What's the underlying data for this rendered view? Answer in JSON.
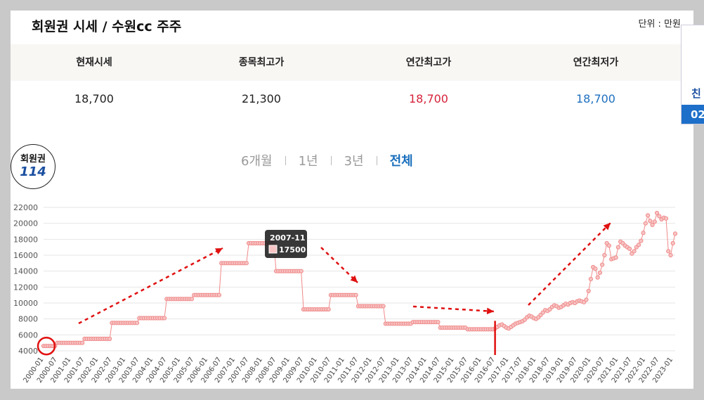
{
  "header": {
    "title": "회원권 시세 / 수원cc 주주",
    "unit": "단위 : 만원"
  },
  "stats": {
    "labels": [
      "현재시세",
      "종목최고가",
      "연간최고가",
      "연간최저가"
    ],
    "values": [
      "18,700",
      "21,300",
      "18,700",
      "18,700"
    ]
  },
  "badge": {
    "line1": "회원권",
    "line2": "114"
  },
  "periods": [
    "6개월",
    "1년",
    "3년",
    "전체"
  ],
  "active_period": "전체",
  "side": {
    "text1": "친",
    "text2": "02"
  },
  "colors": {
    "series": "#f08a8a",
    "annotation": "#e01010",
    "active": "#1a6fbd"
  },
  "tooltip": {
    "date": "2007-11",
    "value": "17500"
  },
  "chart_data": {
    "type": "line",
    "title": "",
    "xlabel": "",
    "ylabel": "",
    "ylim": [
      4000,
      22000
    ],
    "y_ticks": [
      4000,
      6000,
      8000,
      10000,
      12000,
      14000,
      16000,
      18000,
      20000,
      22000
    ],
    "x_ticks": [
      "2000-01",
      "2000-07",
      "2001-01",
      "2001-07",
      "2002-01",
      "2002-07",
      "2003-01",
      "2003-07",
      "2004-01",
      "2004-07",
      "2005-01",
      "2005-07",
      "2006-01",
      "2006-07",
      "2007-01",
      "2007-07",
      "2008-01",
      "2008-07",
      "2009-01",
      "2009-07",
      "2010-01",
      "2010-07",
      "2011-01",
      "2011-07",
      "2012-01",
      "2012-07",
      "2013-01",
      "2013-07",
      "2014-01",
      "2014-07",
      "2015-01",
      "2015-07",
      "2016-01",
      "2016-07",
      "2017-01",
      "2017-07",
      "2018-01",
      "2018-07",
      "2019-01",
      "2019-07",
      "2020-01",
      "2020-07",
      "2021-01",
      "2021-07",
      "2022-01",
      "2022-07",
      "2023-01"
    ],
    "grid": true,
    "steps": [
      [
        "2000-01",
        4600
      ],
      [
        "2000-07",
        5000
      ],
      [
        "2001-07",
        5500
      ],
      [
        "2002-07",
        7500
      ],
      [
        "2003-07",
        8100
      ],
      [
        "2004-07",
        10500
      ],
      [
        "2005-07",
        11000
      ],
      [
        "2006-07",
        15000
      ],
      [
        "2007-07",
        17500
      ],
      [
        "2008-07",
        14000
      ],
      [
        "2009-07",
        9200
      ],
      [
        "2010-07",
        11000
      ],
      [
        "2011-07",
        9600
      ],
      [
        "2012-07",
        7400
      ],
      [
        "2013-07",
        7600
      ],
      [
        "2014-07",
        6900
      ],
      [
        "2015-07",
        6700
      ],
      [
        "2016-07",
        6800
      ]
    ],
    "series": [
      {
        "values": [
          [
            "2016-07",
            6800
          ],
          [
            "2016-08",
            7000
          ],
          [
            "2016-09",
            7200
          ],
          [
            "2016-10",
            7300
          ],
          [
            "2016-11",
            7100
          ],
          [
            "2016-12",
            6900
          ],
          [
            "2017-01",
            6800
          ],
          [
            "2017-02",
            7000
          ],
          [
            "2017-03",
            7200
          ],
          [
            "2017-04",
            7400
          ],
          [
            "2017-05",
            7500
          ],
          [
            "2017-06",
            7600
          ],
          [
            "2017-07",
            7700
          ],
          [
            "2017-08",
            7900
          ],
          [
            "2017-09",
            8200
          ],
          [
            "2017-10",
            8400
          ],
          [
            "2017-11",
            8300
          ],
          [
            "2017-12",
            8100
          ],
          [
            "2018-01",
            8000
          ],
          [
            "2018-02",
            8200
          ],
          [
            "2018-03",
            8500
          ],
          [
            "2018-04",
            8800
          ],
          [
            "2018-05",
            9100
          ],
          [
            "2018-06",
            9000
          ],
          [
            "2018-07",
            9200
          ],
          [
            "2018-08",
            9500
          ],
          [
            "2018-09",
            9700
          ],
          [
            "2018-10",
            9600
          ],
          [
            "2018-11",
            9400
          ],
          [
            "2018-12",
            9500
          ],
          [
            "2019-01",
            9700
          ],
          [
            "2019-02",
            9900
          ],
          [
            "2019-03",
            9800
          ],
          [
            "2019-04",
            10000
          ],
          [
            "2019-05",
            10100
          ],
          [
            "2019-06",
            10000
          ],
          [
            "2019-07",
            10200
          ],
          [
            "2019-08",
            10300
          ],
          [
            "2019-09",
            10200
          ],
          [
            "2019-10",
            10100
          ],
          [
            "2019-11",
            10400
          ],
          [
            "2019-12",
            11500
          ],
          [
            "2020-01",
            13000
          ],
          [
            "2020-02",
            14500
          ],
          [
            "2020-03",
            14300
          ],
          [
            "2020-04",
            13200
          ],
          [
            "2020-05",
            13800
          ],
          [
            "2020-06",
            14800
          ],
          [
            "2020-07",
            16000
          ],
          [
            "2020-08",
            17500
          ],
          [
            "2020-09",
            17200
          ],
          [
            "2020-10",
            15500
          ],
          [
            "2020-11",
            15600
          ],
          [
            "2020-12",
            15700
          ],
          [
            "2021-01",
            17000
          ],
          [
            "2021-02",
            17700
          ],
          [
            "2021-03",
            17500
          ],
          [
            "2021-04",
            17200
          ],
          [
            "2021-05",
            17000
          ],
          [
            "2021-06",
            16800
          ],
          [
            "2021-07",
            16200
          ],
          [
            "2021-08",
            16500
          ],
          [
            "2021-09",
            17000
          ],
          [
            "2021-10",
            17300
          ],
          [
            "2021-11",
            17800
          ],
          [
            "2021-12",
            18800
          ],
          [
            "2022-01",
            20000
          ],
          [
            "2022-02",
            21000
          ],
          [
            "2022-03",
            20300
          ],
          [
            "2022-04",
            19800
          ],
          [
            "2022-05",
            20200
          ],
          [
            "2022-06",
            21300
          ],
          [
            "2022-07",
            20900
          ],
          [
            "2022-08",
            20500
          ],
          [
            "2022-09",
            20700
          ],
          [
            "2022-10",
            20600
          ],
          [
            "2022-11",
            16500
          ],
          [
            "2022-12",
            16000
          ],
          [
            "2023-01",
            17500
          ],
          [
            "2023-02",
            18700
          ]
        ]
      }
    ]
  }
}
